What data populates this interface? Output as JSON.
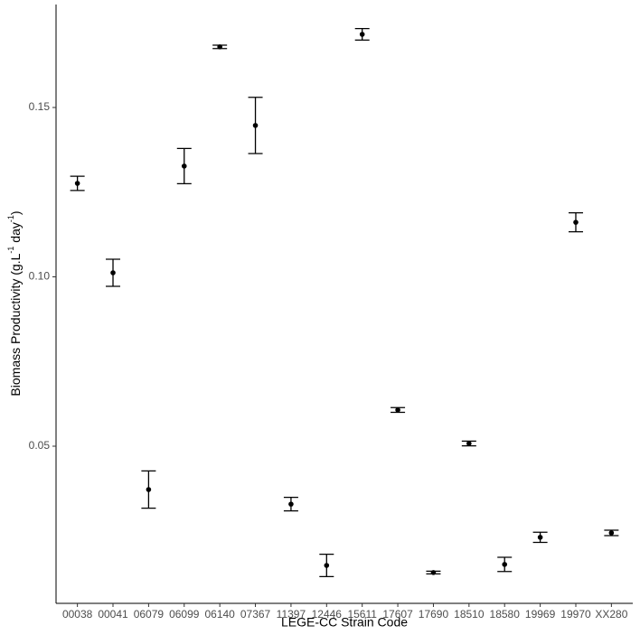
{
  "chart_data": {
    "type": "errorbar",
    "x_label": "LEGE-CC Strain Code",
    "y_label_parts": [
      "Biomass Productivity (g.L",
      "-1",
      " day",
      "-1",
      ")"
    ],
    "categories": [
      "00038",
      "00041",
      "06079",
      "06099",
      "06140",
      "07367",
      "11397",
      "12446",
      "15611",
      "17607",
      "17690",
      "18510",
      "18580",
      "19969",
      "19970",
      "XX280"
    ],
    "values": [
      0.1276,
      0.1012,
      0.0372,
      0.1327,
      0.1679,
      0.1447,
      0.0329,
      0.0148,
      0.1716,
      0.0607,
      0.0127,
      0.0508,
      0.0151,
      0.0231,
      0.1161,
      0.0244
    ],
    "errors": [
      0.0021,
      0.004,
      0.0055,
      0.0052,
      0.0005,
      0.0083,
      0.002,
      0.0033,
      0.0017,
      0.0007,
      0.0004,
      0.0007,
      0.0021,
      0.0015,
      0.0028,
      0.0008
    ],
    "color": "#000000",
    "ylim": [
      0.0036,
      0.1804
    ],
    "yticks": [
      {
        "value": 0.05,
        "label": "0.05"
      },
      {
        "value": 0.1,
        "label": "0.10"
      },
      {
        "value": 0.15,
        "label": "0.15"
      }
    ],
    "grid": false
  }
}
